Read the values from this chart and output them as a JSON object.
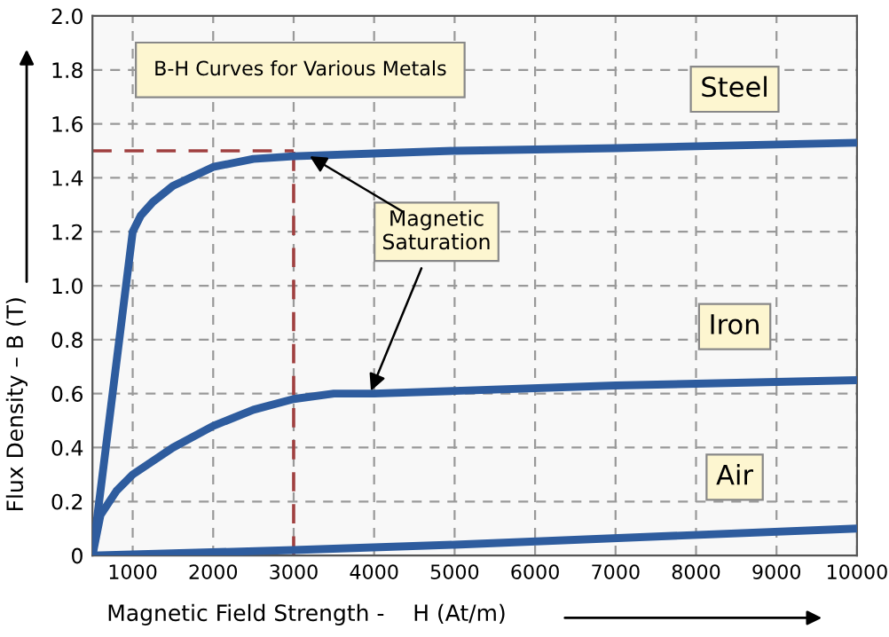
{
  "chart_data": {
    "type": "line",
    "title": "B-H Curves for Various Metals",
    "xlabel": "Magnetic Field Strength -    H (At/m)",
    "ylabel": "Flux Density – B (T)",
    "xlim": [
      500,
      10000
    ],
    "ylim": [
      0,
      2.0
    ],
    "xticks": [
      1000,
      2000,
      3000,
      4000,
      5000,
      6000,
      7000,
      8000,
      9000,
      10000
    ],
    "yticks": [
      0,
      0.2,
      0.4,
      0.6,
      0.8,
      {
        "value": 1,
        "label": "1.0"
      },
      1.2,
      1.4,
      1.6,
      1.8,
      {
        "value": 2,
        "label": "2.0"
      }
    ],
    "grid": true,
    "line_style": "solid",
    "marker": "none",
    "series": [
      {
        "name": "Steel",
        "color": "#2e5c9e",
        "x": [
          500,
          1000,
          1100,
          1250,
          1500,
          2000,
          2500,
          3000,
          4000,
          5000,
          7000,
          10000
        ],
        "values": [
          0,
          1.2,
          1.26,
          1.31,
          1.37,
          1.44,
          1.47,
          1.48,
          1.49,
          1.5,
          1.51,
          1.53
        ]
      },
      {
        "name": "Iron",
        "color": "#2e5c9e",
        "x": [
          500,
          600,
          800,
          1000,
          1500,
          2000,
          2500,
          3000,
          3500,
          4000,
          5000,
          7000,
          10000
        ],
        "values": [
          0,
          0.15,
          0.24,
          0.3,
          0.4,
          0.48,
          0.54,
          0.58,
          0.6,
          0.6,
          0.61,
          0.63,
          0.65
        ]
      },
      {
        "name": "Air",
        "color": "#2e5c9e",
        "x": [
          500,
          3000,
          5000,
          10000
        ],
        "values": [
          0,
          0.02,
          0.04,
          0.1
        ]
      }
    ],
    "ref_lines": [
      {
        "axis": "y",
        "value": 1.5,
        "label": null,
        "color": "#a04040",
        "line_style": "dashed"
      },
      {
        "axis": "x",
        "value": 3000,
        "label": null,
        "color": "#a04040",
        "line_style": "dashed"
      }
    ],
    "annotations": [
      {
        "text": "Magnetic\nSaturation",
        "x": 3200,
        "y": 1.48
      }
    ]
  }
}
